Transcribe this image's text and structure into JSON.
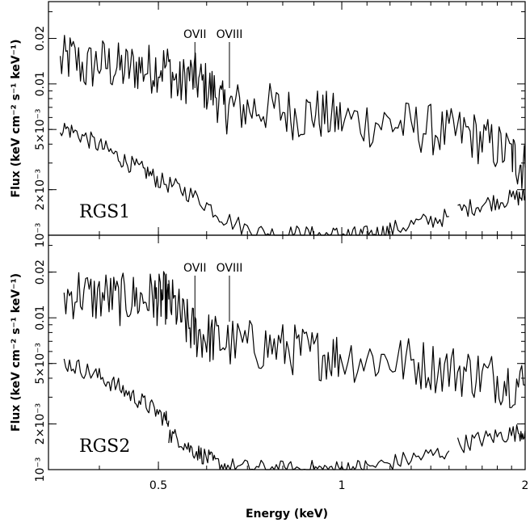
{
  "chart_data": {
    "type": "line",
    "xlabel": "Energy (keV)",
    "x_scale": "log",
    "xlim": [
      0.33,
      2.0
    ],
    "x_ticks": [
      {
        "value": 0.5,
        "label": "0.5"
      },
      {
        "value": 1,
        "label": "1"
      },
      {
        "value": 2,
        "label": "2"
      }
    ],
    "grid": false,
    "panels": [
      {
        "name": "RGS1",
        "ylabel": "Flux (keV cm⁻² s⁻¹ keV⁻¹)",
        "y_scale": "log",
        "ylim": [
          0.001,
          0.035
        ],
        "y_ticks": [
          {
            "value": 0.001,
            "label": "10⁻³"
          },
          {
            "value": 0.002,
            "label": "2×10⁻³"
          },
          {
            "value": 0.005,
            "label": "5×10⁻³"
          },
          {
            "value": 0.01,
            "label": "0.01"
          },
          {
            "value": 0.02,
            "label": "0.02"
          }
        ],
        "lines": [
          {
            "label": "OVII",
            "energy": 0.574
          },
          {
            "label": "OVIII",
            "energy": 0.654
          }
        ],
        "series": [
          {
            "segments": [
              {
                "x": [
                  0.345,
                  0.36,
                  0.38,
                  0.4,
                  0.42,
                  0.44,
                  0.46,
                  0.48,
                  0.5,
                  0.52,
                  0.54,
                  0.56,
                  0.58,
                  0.6,
                  0.62,
                  0.64,
                  0.66,
                  0.7,
                  0.75,
                  0.8,
                  0.85,
                  0.9,
                  0.95,
                  1.0,
                  1.1,
                  1.2,
                  1.3,
                  1.4,
                  1.5,
                  1.6,
                  1.7,
                  1.8,
                  1.9,
                  1.95,
                  2.0
                ],
                "y": [
                  0.0135,
                  0.015,
                  0.0125,
                  0.014,
                  0.013,
                  0.0125,
                  0.013,
                  0.0125,
                  0.0132,
                  0.0128,
                  0.0095,
                  0.0115,
                  0.0105,
                  0.0095,
                  0.0088,
                  0.0068,
                  0.0072,
                  0.0068,
                  0.007,
                  0.0066,
                  0.0062,
                  0.0065,
                  0.006,
                  0.0058,
                  0.0056,
                  0.0055,
                  0.0052,
                  0.005,
                  0.0046,
                  0.0048,
                  0.0042,
                  0.0038,
                  0.0034,
                  0.003,
                  0.0028
                ]
              }
            ]
          },
          {
            "segments": [
              {
                "x": [
                  0.345,
                  0.36,
                  0.38,
                  0.4,
                  0.42,
                  0.44,
                  0.46,
                  0.48,
                  0.5,
                  0.53,
                  0.56,
                  0.6,
                  0.64,
                  0.7,
                  0.75,
                  0.8,
                  0.85,
                  0.9,
                  0.95,
                  1.0,
                  1.05,
                  1.1,
                  1.15,
                  1.2,
                  1.3,
                  1.4,
                  1.5
                ],
                "y": [
                  0.0052,
                  0.0049,
                  0.0044,
                  0.0039,
                  0.0035,
                  0.0031,
                  0.0028,
                  0.0026,
                  0.0023,
                  0.0021,
                  0.0019,
                  0.0016,
                  0.0013,
                  0.0011,
                  0.00103,
                  0.00101,
                  0.00102,
                  0.001,
                  0.001,
                  0.00101,
                  0.001,
                  0.00101,
                  0.00103,
                  0.00108,
                  0.00118,
                  0.00125,
                  0.00133
                ]
              },
              {
                "x": [
                  1.55,
                  1.65,
                  1.75,
                  1.85,
                  1.95,
                  2.0
                ],
                "y": [
                  0.00145,
                  0.00155,
                  0.00165,
                  0.00172,
                  0.00178,
                  0.0018
                ]
              }
            ]
          }
        ]
      },
      {
        "name": "RGS2",
        "ylabel": "Flux (keV cm⁻² s⁻¹ keV⁻¹)",
        "y_scale": "log",
        "ylim": [
          0.001,
          0.035
        ],
        "y_ticks": [
          {
            "value": 0.001,
            "label": "10⁻³"
          },
          {
            "value": 0.002,
            "label": "2×10⁻³"
          },
          {
            "value": 0.005,
            "label": "5×10⁻³"
          },
          {
            "value": 0.01,
            "label": "0.01"
          },
          {
            "value": 0.02,
            "label": "0.02"
          }
        ],
        "lines": [
          {
            "label": "OVII",
            "energy": 0.574
          },
          {
            "label": "OVIII",
            "energy": 0.654
          }
        ],
        "series": [
          {
            "segments": [
              {
                "x": [
                  0.35,
                  0.37,
                  0.39,
                  0.41,
                  0.43,
                  0.45,
                  0.47,
                  0.49,
                  0.5,
                  0.51,
                  0.52
                ],
                "y": [
                  0.0135,
                  0.015,
                  0.0135,
                  0.014,
                  0.013,
                  0.0135,
                  0.0132,
                  0.0138,
                  0.013,
                  0.0136,
                  0.0132
                ]
              },
              {
                "x": [
                  0.52,
                  0.535,
                  0.55,
                  0.565,
                  0.58,
                  0.6,
                  0.62,
                  0.65,
                  0.7,
                  0.75,
                  0.8,
                  0.85,
                  0.9,
                  0.95,
                  1.0,
                  1.1,
                  1.2,
                  1.3,
                  1.4,
                  1.5,
                  1.6,
                  1.7,
                  1.8,
                  1.9,
                  2.0
                ],
                "y": [
                  0.013,
                  0.0115,
                  0.0095,
                  0.0085,
                  0.0078,
                  0.0075,
                  0.0072,
                  0.0068,
                  0.0066,
                  0.0065,
                  0.0063,
                  0.0061,
                  0.0058,
                  0.0057,
                  0.0056,
                  0.0054,
                  0.0053,
                  0.0051,
                  0.0048,
                  0.0046,
                  0.0044,
                  0.0042,
                  0.004,
                  0.0038,
                  0.0036
                ]
              }
            ]
          },
          {
            "segments": [
              {
                "x": [
                  0.35,
                  0.37,
                  0.39,
                  0.41,
                  0.43,
                  0.45,
                  0.47,
                  0.49,
                  0.51,
                  0.52
                ],
                "y": [
                  0.0051,
                  0.0047,
                  0.0043,
                  0.0039,
                  0.0035,
                  0.0031,
                  0.0028,
                  0.0025,
                  0.0022,
                  0.0021
                ]
              },
              {
                "x": [
                  0.52,
                  0.54,
                  0.56,
                  0.58,
                  0.6,
                  0.62,
                  0.65,
                  0.7,
                  0.75,
                  0.8,
                  0.85,
                  0.9,
                  0.95,
                  1.0,
                  1.05,
                  1.1,
                  1.2,
                  1.3,
                  1.4,
                  1.5
                ],
                "y": [
                  0.0017,
                  0.0016,
                  0.0014,
                  0.0013,
                  0.0012,
                  0.0011,
                  0.00105,
                  0.00102,
                  0.00101,
                  0.001,
                  0.001,
                  0.00101,
                  0.001,
                  0.00101,
                  0.00102,
                  0.00104,
                  0.0011,
                  0.00118,
                  0.00125,
                  0.00133
                ]
              },
              {
                "x": [
                  1.55,
                  1.65,
                  1.75,
                  1.85,
                  1.95,
                  2.0
                ],
                "y": [
                  0.00145,
                  0.00155,
                  0.00163,
                  0.0017,
                  0.00176,
                  0.0018
                ]
              }
            ]
          }
        ]
      }
    ]
  }
}
